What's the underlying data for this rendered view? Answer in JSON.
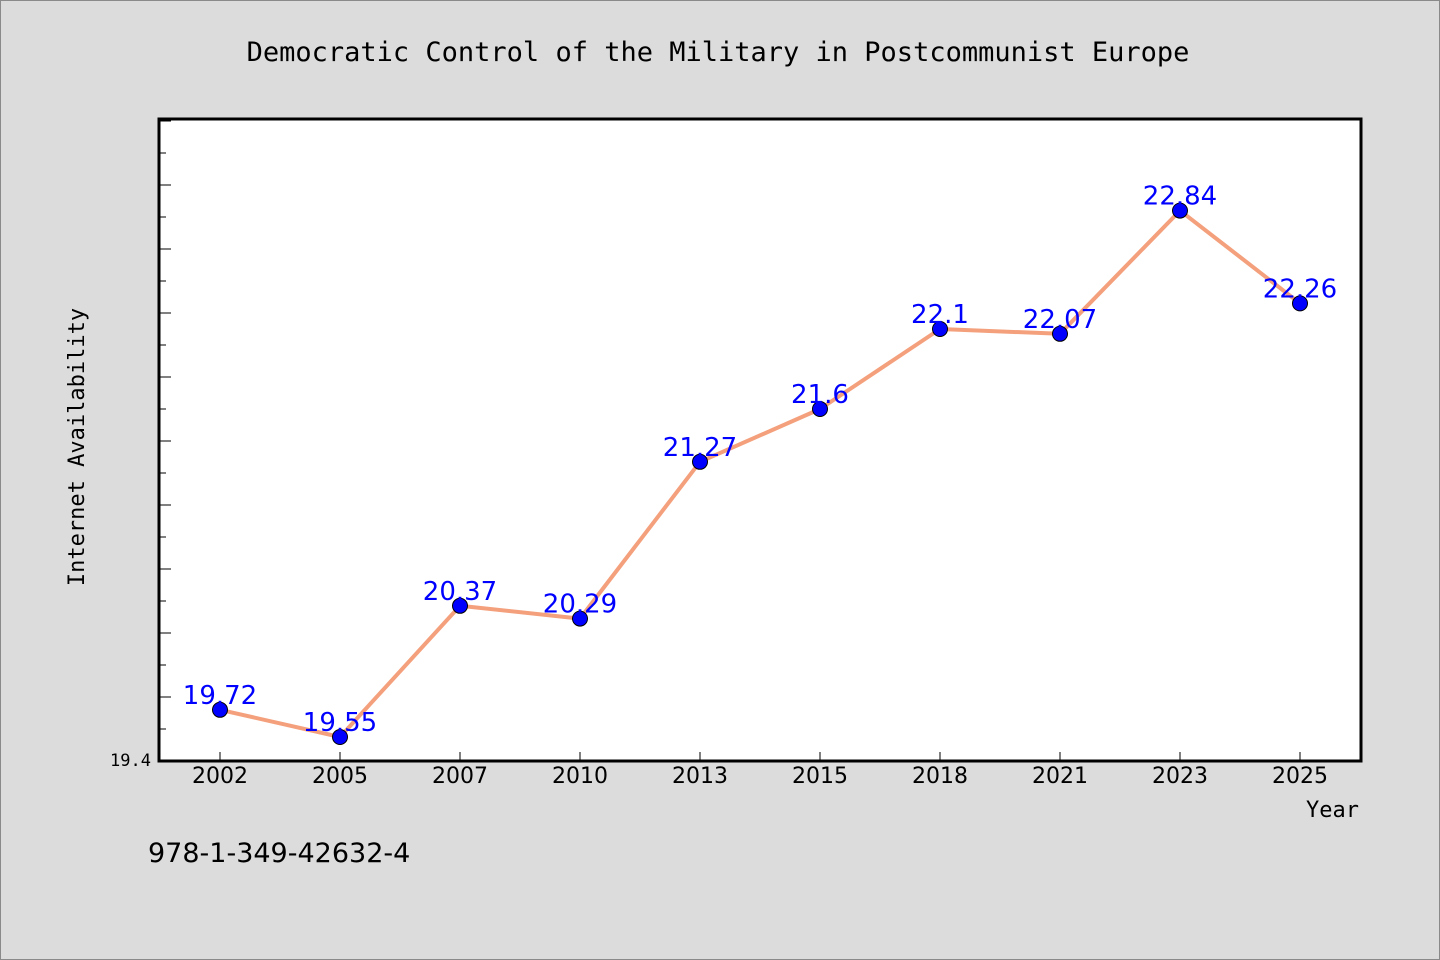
{
  "chart_data": {
    "type": "line",
    "title": "Democratic Control of the Military in Postcommunist Europe",
    "xlabel": "Year",
    "ylabel": "Internet Availability",
    "categories": [
      "2002",
      "2005",
      "2007",
      "2010",
      "2013",
      "2015",
      "2018",
      "2021",
      "2023",
      "2025"
    ],
    "series": [
      {
        "values": [
          19.72,
          19.55,
          20.37,
          20.29,
          21.27,
          21.6,
          22.1,
          22.07,
          22.84,
          22.26
        ],
        "labels": [
          "19.72",
          "19.55",
          "20.37",
          "20.29",
          "21.27",
          "21.6",
          "22.1",
          "22.07",
          "22.84",
          "22.26"
        ]
      }
    ],
    "ylim": [
      19.4,
      23.4
    ],
    "y_tick_labels": [
      "19.4"
    ],
    "grid": false,
    "legend": "none",
    "colors": {
      "line": "#f4a07c",
      "marker": "#0000ff",
      "marker_edge": "#000000",
      "data_label": "#0000ff",
      "plot_background": "#ffffff",
      "figure_background": "#dcdcdc"
    }
  },
  "footer": {
    "isbn": "978-1-349-42632-4"
  }
}
